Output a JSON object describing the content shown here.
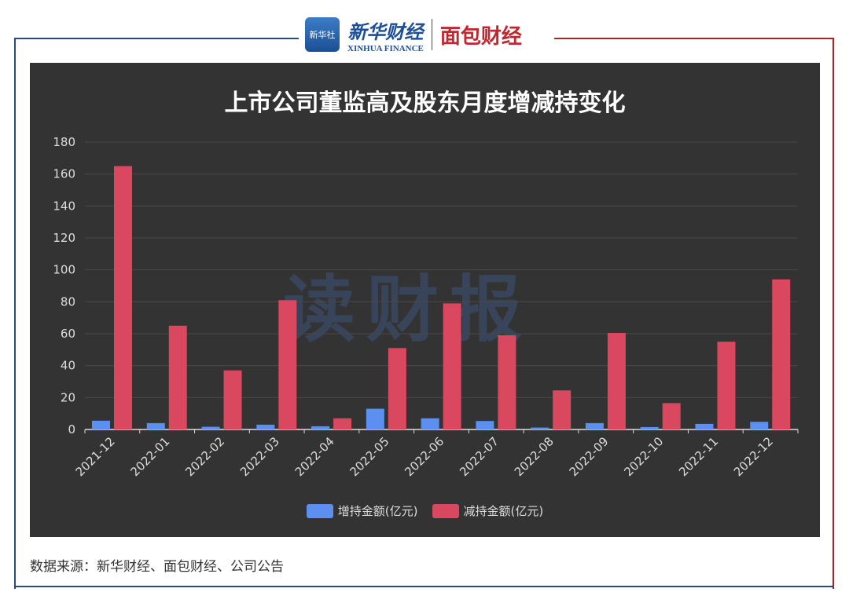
{
  "header": {
    "xinhua_badge": "新华社",
    "xinhua_cn": "新华财经",
    "xinhua_en": "XINHUA FINANCE",
    "mianbao": "面包财经"
  },
  "watermark": "读财报",
  "source": "数据来源：新华财经、面包财经、公司公告",
  "chart_data": {
    "type": "bar",
    "title": "上市公司董监高及股东月度增减持变化",
    "categories": [
      "2021-12",
      "2022-01",
      "2022-02",
      "2022-03",
      "2022-04",
      "2022-05",
      "2022-06",
      "2022-07",
      "2022-08",
      "2022-09",
      "2022-10",
      "2022-11",
      "2022-12"
    ],
    "series": [
      {
        "name": "增持金额(亿元)",
        "color": "#5b8ff0",
        "values": [
          5.5,
          4,
          1.7,
          3,
          2,
          13,
          7,
          5.3,
          1.2,
          4,
          1.5,
          3.5,
          4.8
        ]
      },
      {
        "name": "减持金额(亿元)",
        "color": "#d9485f",
        "values": [
          165,
          65,
          37,
          81,
          7,
          51,
          79,
          59,
          24.5,
          60.5,
          16.5,
          55,
          94
        ]
      }
    ],
    "yticks": [
      "0",
      "20",
      "40",
      "60",
      "80",
      "100",
      "120",
      "140",
      "160",
      "180"
    ],
    "ylim": [
      0,
      180
    ],
    "grid": true,
    "legend": "bottom"
  }
}
